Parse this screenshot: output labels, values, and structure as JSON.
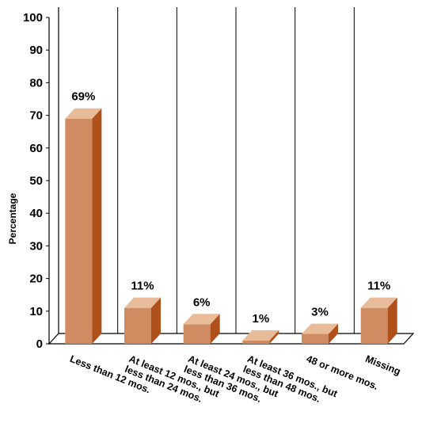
{
  "chart_data": {
    "type": "bar",
    "title": "",
    "xlabel": "",
    "ylabel": "Percentage",
    "ylim": [
      0,
      100
    ],
    "yticks": [
      0,
      10,
      20,
      30,
      40,
      50,
      60,
      70,
      80,
      90,
      100
    ],
    "categories": [
      [
        "Less than 12 mos."
      ],
      [
        "At least 12 mos., but",
        "less than 24 mos."
      ],
      [
        "At least 24 mos., but",
        "less than 36 mos."
      ],
      [
        "At least 36 mos., but",
        "less than 48 mos."
      ],
      [
        "48 or more mos."
      ],
      [
        "Missing"
      ]
    ],
    "values": [
      69,
      11,
      6,
      1,
      3,
      11
    ],
    "data_labels": [
      "69%",
      "11%",
      "6%",
      "1%",
      "3%",
      "11%"
    ],
    "grid": "vertical category dividers",
    "colors": {
      "bar_front": "#d08c60",
      "bar_top": "#e8bc98",
      "bar_side": "#b0501a",
      "axis": "#000000"
    }
  }
}
